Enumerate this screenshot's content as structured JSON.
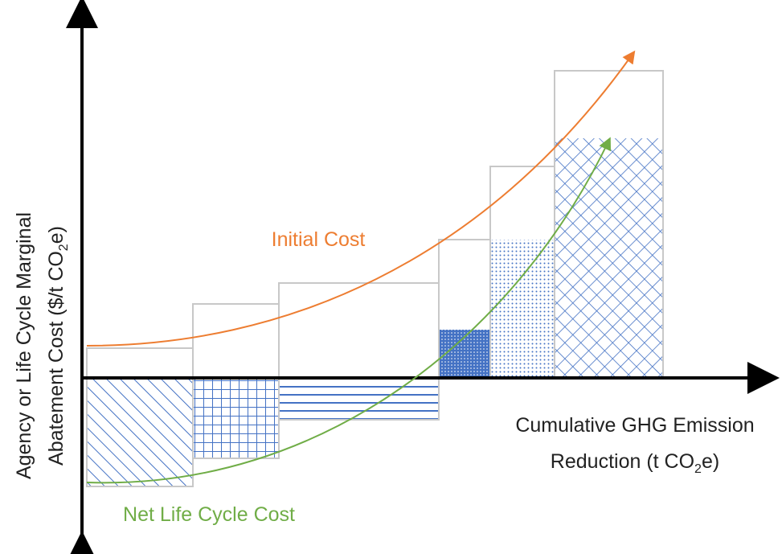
{
  "y_axis_label": {
    "line1": "Agency or Life Cycle Marginal",
    "line2_start": "Abatement Cost ($/t CO",
    "line2_sub": "2",
    "line2_end": "e)"
  },
  "x_axis_label": {
    "line1": "Cumulative GHG Emission",
    "line2_start": "Reduction (t CO",
    "line2_sub": "2",
    "line2_end": "e)"
  },
  "curves": {
    "initial": "Initial Cost",
    "net": "Net Life Cycle Cost"
  }
}
